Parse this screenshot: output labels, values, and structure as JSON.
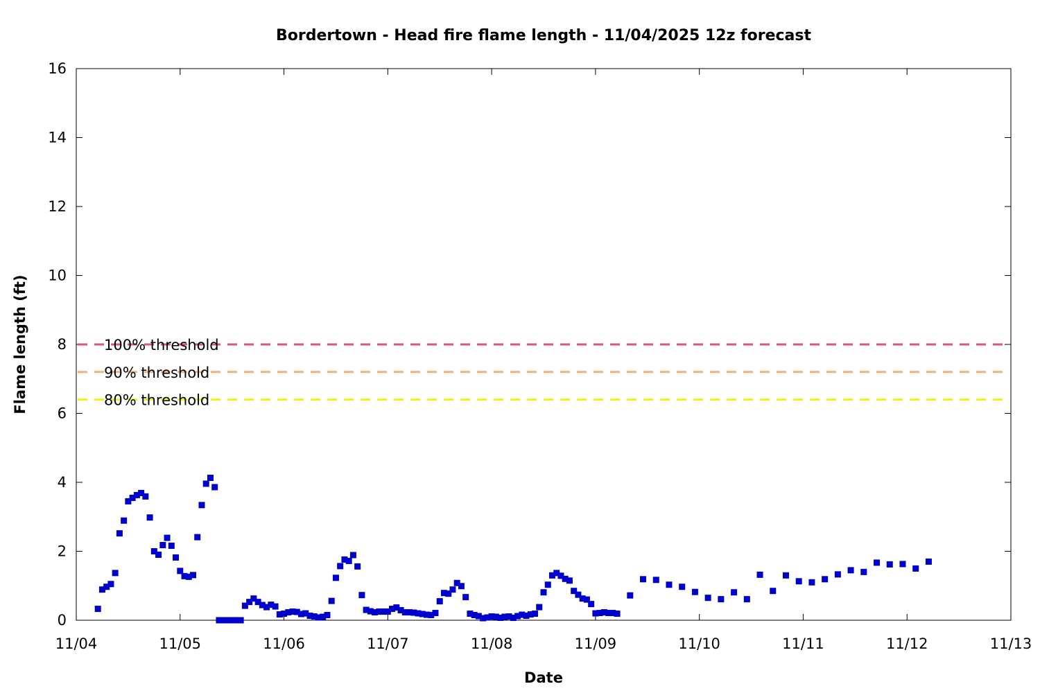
{
  "chart_data": {
    "type": "scatter",
    "title": "Bordertown - Head fire flame length - 11/04/2025 12z forecast",
    "xlabel": "Date",
    "ylabel": "Flame length (ft)",
    "x_unit": "days",
    "xlim": [
      "11/04",
      "11/13"
    ],
    "ylim": [
      0,
      16
    ],
    "x_ticks": [
      "11/04",
      "11/05",
      "11/06",
      "11/07",
      "11/08",
      "11/09",
      "11/10",
      "11/11",
      "11/12",
      "11/13"
    ],
    "y_ticks": [
      0,
      2,
      4,
      6,
      8,
      10,
      12,
      14,
      16
    ],
    "grid": false,
    "marker_color": "#0000cc",
    "thresholds": [
      {
        "label": "100% threshold",
        "value": 8.0,
        "color": "#d9577a"
      },
      {
        "label": "90% threshold",
        "value": 7.2,
        "color": "#f0b27a"
      },
      {
        "label": "80% threshold",
        "value": 6.4,
        "color": "#f2f20f"
      }
    ],
    "series": [
      {
        "points": [
          [
            "11/04 05:00",
            0.33
          ],
          [
            "11/04 06:00",
            0.89
          ],
          [
            "11/04 07:00",
            0.97
          ],
          [
            "11/04 08:00",
            1.05
          ],
          [
            "11/04 09:00",
            1.37
          ],
          [
            "11/04 10:00",
            2.52
          ],
          [
            "11/04 11:00",
            2.89
          ],
          [
            "11/04 12:00",
            3.45
          ],
          [
            "11/04 13:00",
            3.55
          ],
          [
            "11/04 14:00",
            3.63
          ],
          [
            "11/04 15:00",
            3.69
          ],
          [
            "11/04 16:00",
            3.59
          ],
          [
            "11/04 17:00",
            2.98
          ],
          [
            "11/04 18:00",
            2.0
          ],
          [
            "11/04 19:00",
            1.9
          ],
          [
            "11/04 20:00",
            2.18
          ],
          [
            "11/04 21:00",
            2.39
          ],
          [
            "11/04 22:00",
            2.16
          ],
          [
            "11/04 23:00",
            1.82
          ],
          [
            "11/05 00:00",
            1.43
          ],
          [
            "11/05 01:00",
            1.28
          ],
          [
            "11/05 02:00",
            1.26
          ],
          [
            "11/05 03:00",
            1.31
          ],
          [
            "11/05 04:00",
            2.41
          ],
          [
            "11/05 05:00",
            3.34
          ],
          [
            "11/05 06:00",
            3.96
          ],
          [
            "11/05 07:00",
            4.13
          ],
          [
            "11/05 08:00",
            3.86
          ],
          [
            "11/05 09:00",
            0.0
          ],
          [
            "11/05 10:00",
            0.0
          ],
          [
            "11/05 11:00",
            0.0
          ],
          [
            "11/05 12:00",
            0.0
          ],
          [
            "11/05 13:00",
            0.0
          ],
          [
            "11/05 14:00",
            0.0
          ],
          [
            "11/05 15:00",
            0.42
          ],
          [
            "11/05 16:00",
            0.53
          ],
          [
            "11/05 17:00",
            0.63
          ],
          [
            "11/05 18:00",
            0.53
          ],
          [
            "11/05 19:00",
            0.44
          ],
          [
            "11/05 20:00",
            0.38
          ],
          [
            "11/05 21:00",
            0.45
          ],
          [
            "11/05 22:00",
            0.4
          ],
          [
            "11/05 23:00",
            0.17
          ],
          [
            "11/06 00:00",
            0.19
          ],
          [
            "11/06 01:00",
            0.23
          ],
          [
            "11/06 02:00",
            0.25
          ],
          [
            "11/06 03:00",
            0.24
          ],
          [
            "11/06 04:00",
            0.18
          ],
          [
            "11/06 05:00",
            0.2
          ],
          [
            "11/06 06:00",
            0.13
          ],
          [
            "11/06 07:00",
            0.11
          ],
          [
            "11/06 08:00",
            0.08
          ],
          [
            "11/06 09:00",
            0.1
          ],
          [
            "11/06 10:00",
            0.15
          ],
          [
            "11/06 11:00",
            0.56
          ],
          [
            "11/06 12:00",
            1.23
          ],
          [
            "11/06 13:00",
            1.57
          ],
          [
            "11/06 14:00",
            1.76
          ],
          [
            "11/06 15:00",
            1.72
          ],
          [
            "11/06 16:00",
            1.89
          ],
          [
            "11/06 17:00",
            1.56
          ],
          [
            "11/06 18:00",
            0.73
          ],
          [
            "11/06 19:00",
            0.3
          ],
          [
            "11/06 20:00",
            0.26
          ],
          [
            "11/06 21:00",
            0.23
          ],
          [
            "11/06 22:00",
            0.25
          ],
          [
            "11/06 23:00",
            0.25
          ],
          [
            "11/07 00:00",
            0.25
          ],
          [
            "11/07 01:00",
            0.33
          ],
          [
            "11/07 02:00",
            0.37
          ],
          [
            "11/07 03:00",
            0.29
          ],
          [
            "11/07 04:00",
            0.23
          ],
          [
            "11/07 05:00",
            0.23
          ],
          [
            "11/07 06:00",
            0.22
          ],
          [
            "11/07 07:00",
            0.2
          ],
          [
            "11/07 08:00",
            0.18
          ],
          [
            "11/07 09:00",
            0.16
          ],
          [
            "11/07 10:00",
            0.15
          ],
          [
            "11/07 11:00",
            0.21
          ],
          [
            "11/07 12:00",
            0.55
          ],
          [
            "11/07 13:00",
            0.79
          ],
          [
            "11/07 14:00",
            0.77
          ],
          [
            "11/07 15:00",
            0.89
          ],
          [
            "11/07 16:00",
            1.08
          ],
          [
            "11/07 17:00",
            0.99
          ],
          [
            "11/07 18:00",
            0.67
          ],
          [
            "11/07 19:00",
            0.19
          ],
          [
            "11/07 20:00",
            0.15
          ],
          [
            "11/07 21:00",
            0.12
          ],
          [
            "11/07 22:00",
            0.06
          ],
          [
            "11/07 23:00",
            0.08
          ],
          [
            "11/08 00:00",
            0.11
          ],
          [
            "11/08 01:00",
            0.1
          ],
          [
            "11/08 02:00",
            0.07
          ],
          [
            "11/08 03:00",
            0.1
          ],
          [
            "11/08 04:00",
            0.11
          ],
          [
            "11/08 05:00",
            0.07
          ],
          [
            "11/08 06:00",
            0.12
          ],
          [
            "11/08 07:00",
            0.16
          ],
          [
            "11/08 08:00",
            0.13
          ],
          [
            "11/08 09:00",
            0.17
          ],
          [
            "11/08 10:00",
            0.19
          ],
          [
            "11/08 11:00",
            0.38
          ],
          [
            "11/08 12:00",
            0.81
          ],
          [
            "11/08 13:00",
            1.03
          ],
          [
            "11/08 14:00",
            1.3
          ],
          [
            "11/08 15:00",
            1.37
          ],
          [
            "11/08 16:00",
            1.29
          ],
          [
            "11/08 17:00",
            1.2
          ],
          [
            "11/08 18:00",
            1.15
          ],
          [
            "11/08 19:00",
            0.85
          ],
          [
            "11/08 20:00",
            0.74
          ],
          [
            "11/08 21:00",
            0.63
          ],
          [
            "11/08 22:00",
            0.6
          ],
          [
            "11/08 23:00",
            0.47
          ],
          [
            "11/09 00:00",
            0.2
          ],
          [
            "11/09 01:00",
            0.21
          ],
          [
            "11/09 02:00",
            0.23
          ],
          [
            "11/09 03:00",
            0.21
          ],
          [
            "11/09 04:00",
            0.21
          ],
          [
            "11/09 05:00",
            0.19
          ],
          [
            "11/09 08:00",
            0.72
          ],
          [
            "11/09 11:00",
            1.19
          ],
          [
            "11/09 14:00",
            1.17
          ],
          [
            "11/09 17:00",
            1.03
          ],
          [
            "11/09 20:00",
            0.97
          ],
          [
            "11/09 23:00",
            0.82
          ],
          [
            "11/10 02:00",
            0.65
          ],
          [
            "11/10 05:00",
            0.61
          ],
          [
            "11/10 08:00",
            0.81
          ],
          [
            "11/10 11:00",
            0.61
          ],
          [
            "11/10 14:00",
            1.32
          ],
          [
            "11/10 17:00",
            0.85
          ],
          [
            "11/10 20:00",
            1.3
          ],
          [
            "11/10 23:00",
            1.13
          ],
          [
            "11/11 02:00",
            1.1
          ],
          [
            "11/11 05:00",
            1.19
          ],
          [
            "11/11 08:00",
            1.33
          ],
          [
            "11/11 11:00",
            1.45
          ],
          [
            "11/11 14:00",
            1.4
          ],
          [
            "11/11 17:00",
            1.67
          ],
          [
            "11/11 20:00",
            1.62
          ],
          [
            "11/11 23:00",
            1.63
          ],
          [
            "11/12 02:00",
            1.5
          ],
          [
            "11/12 05:00",
            1.7
          ]
        ]
      }
    ]
  }
}
